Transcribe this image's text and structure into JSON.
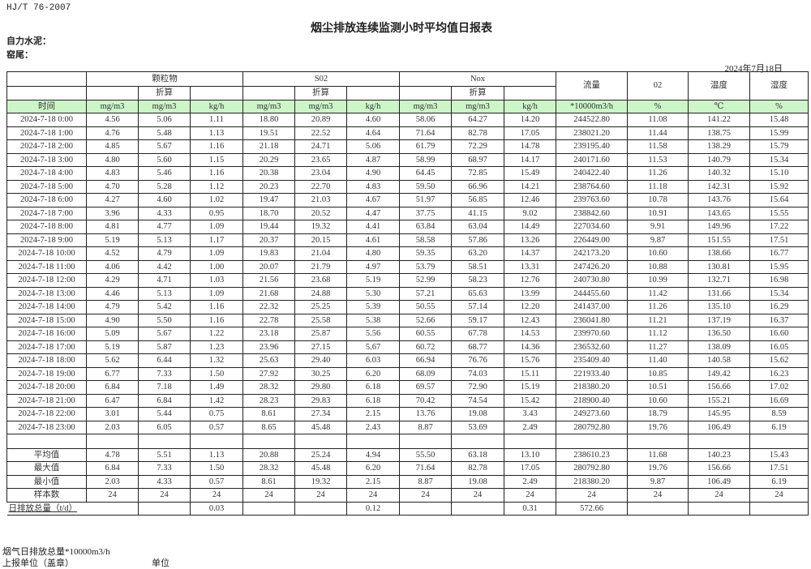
{
  "header": {
    "standard": "HJ/T  76-2007",
    "title": "烟尘排放连续监测小时平均值日报表",
    "company": "自力水泥：",
    "kiln": "窑尾：",
    "date": "2024年7月18日"
  },
  "table": {
    "groups": {
      "particulate": "颗粒物",
      "so2": "S02",
      "nox": "Nox",
      "flow": "流量",
      "o2": "02",
      "temp": "温度",
      "humidity": "湿度"
    },
    "converted_label": "折算",
    "units": [
      "时间",
      "mg/m3",
      "mg/m3",
      "kg/h",
      "mg/m3",
      "mg/m3",
      "kg/h",
      "mg/m3",
      "mg/m3",
      "kg/h",
      "*10000m3/h",
      "%",
      "℃",
      "%"
    ],
    "rows": [
      [
        "2024-7-18 0:00",
        "4.56",
        "5.06",
        "1.11",
        "18.80",
        "20.89",
        "4.60",
        "58.06",
        "64.27",
        "14.20",
        "244522.80",
        "11.08",
        "141.22",
        "15.48"
      ],
      [
        "2024-7-18 1:00",
        "4.76",
        "5.48",
        "1.13",
        "19.51",
        "22.52",
        "4.64",
        "71.64",
        "82.78",
        "17.05",
        "238021.20",
        "11.44",
        "138.75",
        "15.99"
      ],
      [
        "2024-7-18 2:00",
        "4.85",
        "5.67",
        "1.16",
        "21.18",
        "24.71",
        "5.06",
        "61.79",
        "72.29",
        "14.78",
        "239195.40",
        "11.58",
        "138.29",
        "15.79"
      ],
      [
        "2024-7-18 3:00",
        "4.80",
        "5.60",
        "1.15",
        "20.29",
        "23.65",
        "4.87",
        "58.99",
        "68.97",
        "14.17",
        "240171.60",
        "11.53",
        "140.79",
        "15.34"
      ],
      [
        "2024-7-18 4:00",
        "4.83",
        "5.46",
        "1.16",
        "20.38",
        "23.04",
        "4.90",
        "64.45",
        "72.85",
        "15.49",
        "240422.40",
        "11.26",
        "140.32",
        "15.10"
      ],
      [
        "2024-7-18 5:00",
        "4.70",
        "5.28",
        "1.12",
        "20.23",
        "22.70",
        "4.83",
        "59.50",
        "66.96",
        "14.21",
        "238764.60",
        "11.18",
        "142.31",
        "15.92"
      ],
      [
        "2024-7-18 6:00",
        "4.27",
        "4.60",
        "1.02",
        "19.47",
        "21.03",
        "4.67",
        "51.97",
        "56.85",
        "12.46",
        "239763.60",
        "10.78",
        "143.76",
        "15.64"
      ],
      [
        "2024-7-18 7:00",
        "3.96",
        "4.33",
        "0.95",
        "18.70",
        "20.52",
        "4.47",
        "37.75",
        "41.15",
        "9.02",
        "238842.60",
        "10.91",
        "143.65",
        "15.55"
      ],
      [
        "2024-7-18 8:00",
        "4.81",
        "4.77",
        "1.09",
        "19.44",
        "19.32",
        "4.41",
        "63.84",
        "63.04",
        "14.49",
        "227034.60",
        "9.91",
        "149.96",
        "17.22"
      ],
      [
        "2024-7-18 9:00",
        "5.19",
        "5.13",
        "1.17",
        "20.37",
        "20.15",
        "4.61",
        "58.58",
        "57.86",
        "13.26",
        "226449.00",
        "9.87",
        "151.55",
        "17.51"
      ],
      [
        "2024-7-18 10:00",
        "4.52",
        "4.79",
        "1.09",
        "19.83",
        "21.04",
        "4.80",
        "59.35",
        "63.20",
        "14.37",
        "242173.20",
        "10.60",
        "138.66",
        "16.77"
      ],
      [
        "2024-7-18 11:00",
        "4.06",
        "4.42",
        "1.00",
        "20.07",
        "21.79",
        "4.97",
        "53.79",
        "58.51",
        "13.31",
        "247426.20",
        "10.88",
        "130.81",
        "15.95"
      ],
      [
        "2024-7-18 12:00",
        "4.29",
        "4.71",
        "1.03",
        "21.56",
        "23.68",
        "5.19",
        "52.99",
        "58.23",
        "12.76",
        "240730.80",
        "10.99",
        "132.71",
        "16.98"
      ],
      [
        "2024-7-18 13:00",
        "4.46",
        "5.13",
        "1.09",
        "21.68",
        "24.88",
        "5.30",
        "57.21",
        "65.63",
        "13.99",
        "244455.60",
        "11.42",
        "131.66",
        "15.34"
      ],
      [
        "2024-7-18 14:00",
        "4.79",
        "5.42",
        "1.16",
        "22.32",
        "25.25",
        "5.39",
        "50.55",
        "57.14",
        "12.20",
        "241437.00",
        "11.26",
        "135.10",
        "16.29"
      ],
      [
        "2024-7-18 15:00",
        "4.90",
        "5.50",
        "1.16",
        "22.78",
        "25.58",
        "5.38",
        "52.66",
        "59.17",
        "12.43",
        "236041.80",
        "11.21",
        "137.19",
        "16.37"
      ],
      [
        "2024-7-18 16:00",
        "5.09",
        "5.67",
        "1.22",
        "23.18",
        "25.87",
        "5.56",
        "60.55",
        "67.78",
        "14.53",
        "239970.60",
        "11.12",
        "136.50",
        "16.60"
      ],
      [
        "2024-7-18 17:00",
        "5.19",
        "5.87",
        "1.23",
        "23.96",
        "27.15",
        "5.67",
        "60.72",
        "68.77",
        "14.36",
        "236532.60",
        "11.27",
        "138.09",
        "16.05"
      ],
      [
        "2024-7-18 18:00",
        "5.62",
        "6.44",
        "1.32",
        "25.63",
        "29.40",
        "6.03",
        "66.94",
        "76.76",
        "15.76",
        "235409.40",
        "11.40",
        "140.58",
        "15.62"
      ],
      [
        "2024-7-18 19:00",
        "6.77",
        "7.33",
        "1.50",
        "27.92",
        "30.25",
        "6.20",
        "68.09",
        "74.03",
        "15.11",
        "221933.40",
        "10.85",
        "149.42",
        "16.23"
      ],
      [
        "2024-7-18 20:00",
        "6.84",
        "7.18",
        "1.49",
        "28.32",
        "29.80",
        "6.18",
        "69.57",
        "72.90",
        "15.19",
        "218380.20",
        "10.51",
        "156.66",
        "17.02"
      ],
      [
        "2024-7-18 21:00",
        "6.47",
        "6.84",
        "1.42",
        "28.23",
        "29.83",
        "6.18",
        "70.42",
        "74.54",
        "15.42",
        "218900.40",
        "10.60",
        "155.21",
        "16.69"
      ],
      [
        "2024-7-18 22:00",
        "3.01",
        "5.44",
        "0.75",
        "8.61",
        "27.34",
        "2.15",
        "13.76",
        "19.08",
        "3.43",
        "249273.60",
        "18.79",
        "145.95",
        "8.59"
      ],
      [
        "2024-7-18 23:00",
        "2.03",
        "6.05",
        "0.57",
        "8.65",
        "45.48",
        "2.43",
        "8.87",
        "53.69",
        "2.49",
        "280792.80",
        "19.76",
        "106.49",
        "6.19"
      ]
    ],
    "summary": [
      [
        "平均值",
        "4.78",
        "5.51",
        "1.13",
        "20.88",
        "25.24",
        "4.94",
        "55.50",
        "63.18",
        "13.10",
        "238610.23",
        "11.68",
        "140.23",
        "15.43"
      ],
      [
        "最大值",
        "6.84",
        "7.33",
        "1.50",
        "28.32",
        "45.48",
        "6.20",
        "71.64",
        "82.78",
        "17.05",
        "280792.80",
        "19.76",
        "156.66",
        "17.51"
      ],
      [
        "最小值",
        "2.03",
        "4.33",
        "0.57",
        "8.61",
        "19.32",
        "2.15",
        "8.87",
        "19.08",
        "2.49",
        "218380.20",
        "9.87",
        "106.49",
        "6.19"
      ],
      [
        "样本数",
        "24",
        "24",
        "24",
        "24",
        "24",
        "24",
        "24",
        "24",
        "24",
        "24",
        "24",
        "24",
        "24"
      ]
    ],
    "daily_total": {
      "label": "日排放总量（t/d）",
      "values": [
        "",
        "0.03",
        "",
        "",
        "0.12",
        "",
        "",
        "0.31",
        "572.66",
        "",
        "",
        ""
      ]
    }
  },
  "footer": {
    "flue_gas_total": "烟气日排放总量*10000m3/h",
    "reporting_unit": "上报单位（盖章）",
    "unit": "单位"
  }
}
